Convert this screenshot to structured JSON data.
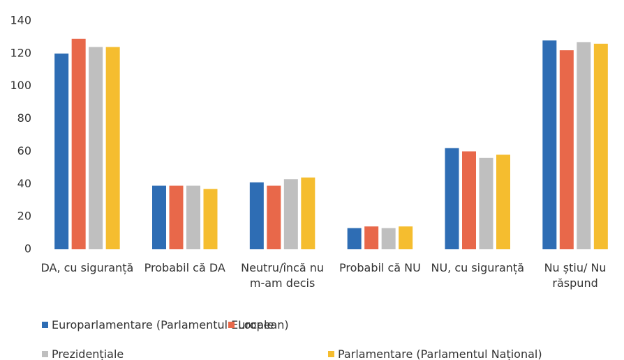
{
  "chart_data": {
    "type": "bar",
    "categories": [
      "DA, cu siguranță",
      "Probabil că DA",
      "Neutru/încă nu m-am decis",
      "Probabil că NU",
      "NU, cu siguranță",
      "Nu știu/ Nu răspund"
    ],
    "series": [
      {
        "name": "Europarlamentare (Parlamentul European)",
        "color": "#2e6db4",
        "values": [
          120,
          39,
          41,
          13,
          62,
          128
        ]
      },
      {
        "name": "Locale",
        "color": "#e8684a",
        "values": [
          129,
          39,
          39,
          14,
          60,
          122
        ]
      },
      {
        "name": "Prezidențiale",
        "color": "#bfbfbf",
        "values": [
          124,
          39,
          43,
          13,
          56,
          127
        ]
      },
      {
        "name": "Parlamentare (Parlamentul Național)",
        "color": "#f5bd2f",
        "values": [
          124,
          37,
          44,
          14,
          58,
          126
        ]
      }
    ],
    "ylim": [
      0,
      140
    ],
    "yticks": [
      0,
      20,
      40,
      60,
      80,
      100,
      120,
      140
    ],
    "grid": false
  }
}
